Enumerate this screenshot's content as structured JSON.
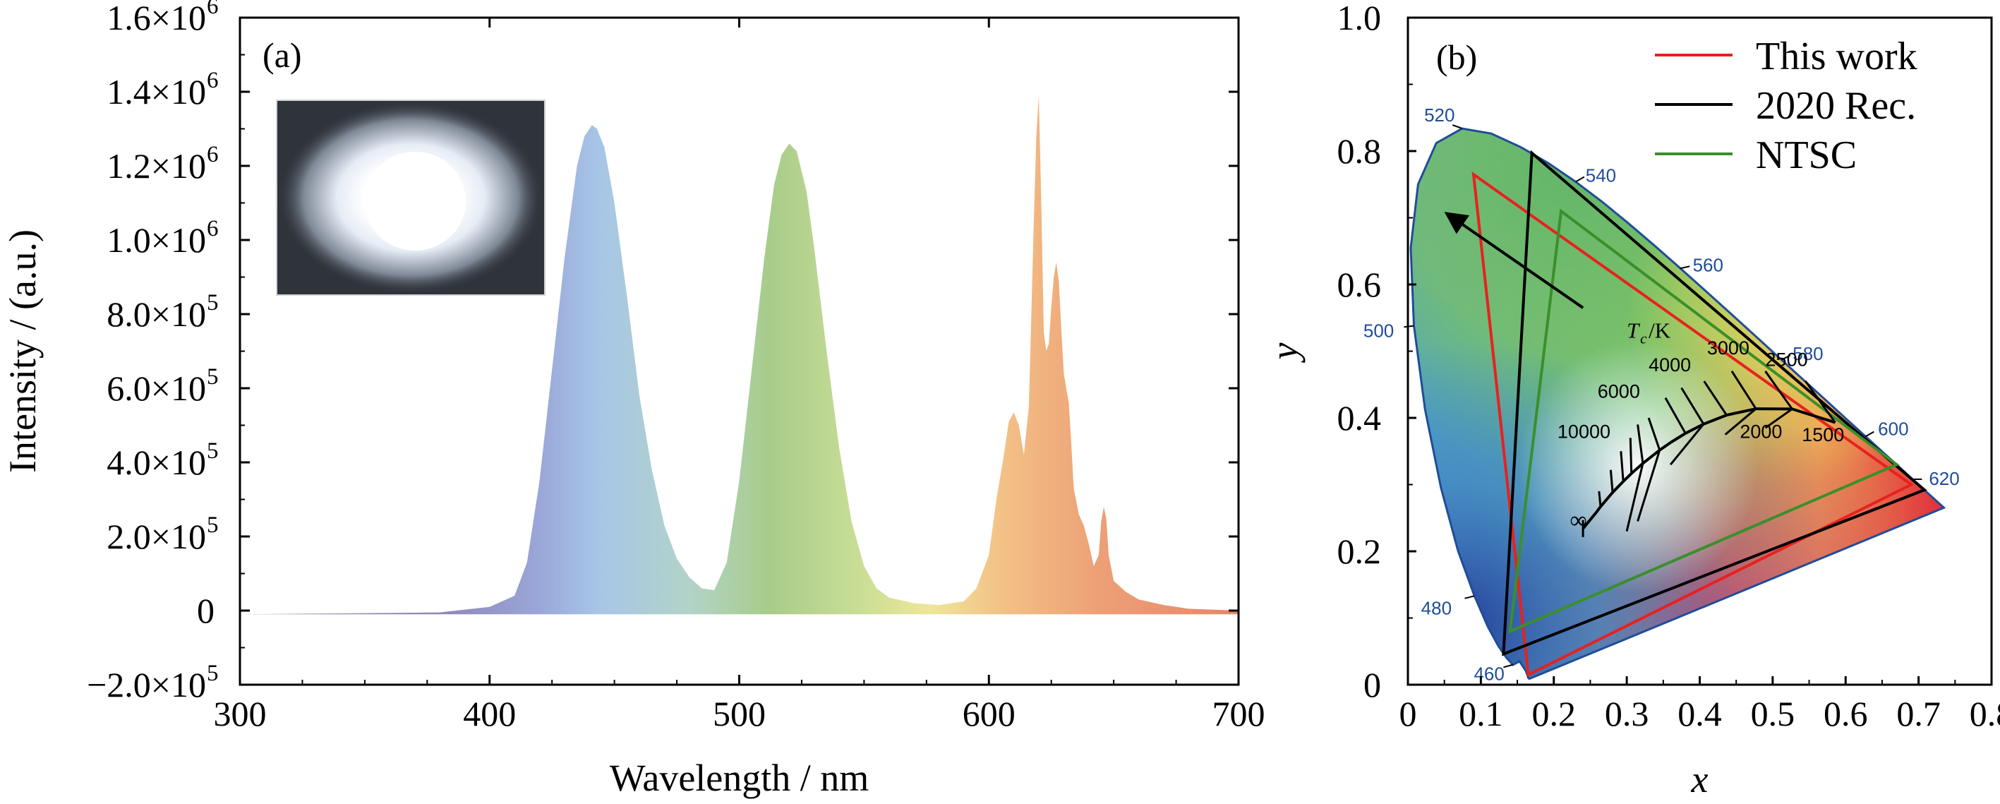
{
  "chart_data": [
    {
      "panel": "(a)",
      "type": "area",
      "xlabel": "Wavelength / nm",
      "ylabel": "Intensity / (a.u.)",
      "xlim": [
        300,
        700
      ],
      "ylim": [
        -200000,
        1600000
      ],
      "x_ticks": [
        300,
        400,
        500,
        600,
        700
      ],
      "y_ticks": [
        {
          "value": -200000,
          "label": "−2.0×10",
          "exp": "5"
        },
        {
          "value": 0,
          "label": "0",
          "exp": ""
        },
        {
          "value": 200000,
          "label": "2.0×10",
          "exp": "5"
        },
        {
          "value": 400000,
          "label": "4.0×10",
          "exp": "5"
        },
        {
          "value": 600000,
          "label": "6.0×10",
          "exp": "5"
        },
        {
          "value": 800000,
          "label": "8.0×10",
          "exp": "5"
        },
        {
          "value": 1000000,
          "label": "1.0×10",
          "exp": "6"
        },
        {
          "value": 1200000,
          "label": "1.2×10",
          "exp": "6"
        },
        {
          "value": 1400000,
          "label": "1.4×10",
          "exp": "6"
        },
        {
          "value": 1600000,
          "label": "1.6×10",
          "exp": "6"
        }
      ],
      "baseline": -10000,
      "series": [
        {
          "x": [
            300,
            380,
            400,
            410,
            415,
            420,
            425,
            430,
            435,
            438,
            441,
            443,
            446,
            450,
            455,
            460,
            465,
            470,
            475,
            480,
            485,
            490,
            495,
            500,
            505,
            510,
            514,
            517,
            520,
            523,
            527,
            530,
            535,
            540,
            545,
            550,
            555,
            560,
            570,
            580,
            590,
            595,
            600,
            603,
            606,
            608,
            610,
            612,
            614,
            616,
            617,
            618,
            619,
            620,
            621,
            622,
            623,
            624,
            625,
            626,
            627,
            628,
            629,
            630,
            631,
            632,
            633,
            634,
            636,
            638,
            640,
            642,
            644,
            645,
            646,
            647,
            648,
            650,
            655,
            660,
            670,
            680,
            700
          ],
          "y": [
            -10000,
            -5000,
            10000,
            40000,
            130000,
            350000,
            650000,
            950000,
            1200000,
            1280000,
            1310000,
            1300000,
            1250000,
            1100000,
            850000,
            580000,
            380000,
            230000,
            140000,
            90000,
            60000,
            55000,
            130000,
            350000,
            650000,
            950000,
            1150000,
            1230000,
            1260000,
            1240000,
            1130000,
            980000,
            700000,
            440000,
            240000,
            120000,
            60000,
            35000,
            20000,
            15000,
            25000,
            60000,
            150000,
            300000,
            420000,
            510000,
            535000,
            500000,
            420000,
            550000,
            800000,
            1050000,
            1280000,
            1390000,
            1100000,
            750000,
            700000,
            720000,
            820000,
            900000,
            940000,
            890000,
            760000,
            640000,
            600000,
            560000,
            450000,
            330000,
            260000,
            230000,
            180000,
            120000,
            150000,
            240000,
            280000,
            250000,
            150000,
            80000,
            50000,
            30000,
            15000,
            5000,
            0
          ]
        }
      ],
      "inset": "photo of glowing white LED"
    },
    {
      "panel": "(b)",
      "type": "scatter",
      "xlabel": "x",
      "ylabel": "y",
      "xlim": [
        0,
        0.8
      ],
      "ylim": [
        0,
        1.0
      ],
      "x_ticks": [
        "0",
        "0.1",
        "0.2",
        "0.3",
        "0.4",
        "0.5",
        "0.6",
        "0.7",
        "0.8"
      ],
      "y_ticks": [
        "0",
        "0.2",
        "0.4",
        "0.6",
        "0.8",
        "1.0"
      ],
      "locus_labels": [
        {
          "text": "460",
          "x": 0.144,
          "y": 0.03
        },
        {
          "text": "480",
          "x": 0.091,
          "y": 0.133
        },
        {
          "text": "500",
          "x": 0.008,
          "y": 0.538
        },
        {
          "text": "520",
          "x": 0.074,
          "y": 0.834
        },
        {
          "text": "540",
          "x": 0.23,
          "y": 0.754
        },
        {
          "text": "560",
          "x": 0.373,
          "y": 0.624
        },
        {
          "text": "580",
          "x": 0.512,
          "y": 0.487
        },
        {
          "text": "600",
          "x": 0.627,
          "y": 0.372
        },
        {
          "text": "620",
          "x": 0.691,
          "y": 0.308
        }
      ],
      "series": [
        {
          "name": "This work",
          "color": "#e8211e",
          "points": [
            [
              0.09,
              0.765
            ],
            [
              0.69,
              0.3
            ],
            [
              0.165,
              0.015
            ]
          ]
        },
        {
          "name": "2020 Rec.",
          "color": "#000000",
          "points": [
            [
              0.17,
              0.797
            ],
            [
              0.708,
              0.292
            ],
            [
              0.131,
              0.046
            ]
          ]
        },
        {
          "name": "NTSC",
          "color": "#3a8f2b",
          "points": [
            [
              0.21,
              0.71
            ],
            [
              0.67,
              0.33
            ],
            [
              0.14,
              0.08
            ]
          ]
        }
      ],
      "planckian_label": {
        "text": "T",
        "sub": "c",
        "rest": "/K"
      },
      "cct_labels": [
        "10000",
        "6000",
        "4000",
        "3000",
        "2500",
        "2000",
        "1500"
      ],
      "infinity_label": "∞",
      "legend_position": "top-right"
    }
  ]
}
